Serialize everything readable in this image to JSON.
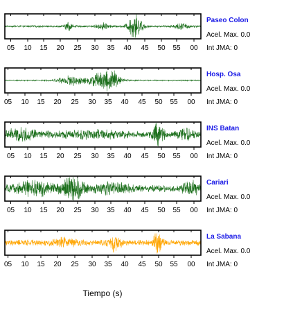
{
  "chart_data": {
    "type": "line",
    "xlabel": "Tiempo (s)",
    "tick_labels": [
      "05",
      "10",
      "15",
      "20",
      "25",
      "30",
      "35",
      "40",
      "45",
      "50",
      "55",
      "00"
    ],
    "station_color": "#1a1ae6",
    "panels": [
      {
        "station": "Paseo Colon",
        "accel_label": "Acel. Max. 0.0",
        "int_label": "Int JMA: 0",
        "color": "#1a6e1a",
        "tick_offset": 0,
        "events": [
          {
            "t": 0.325,
            "amp": 0.35,
            "w": 0.02
          },
          {
            "t": 0.5,
            "amp": 0.28,
            "w": 0.03
          },
          {
            "t": 0.665,
            "amp": 1.0,
            "w": 0.035
          },
          {
            "t": 0.9,
            "amp": 0.25,
            "w": 0.04
          }
        ],
        "noise": 0.08
      },
      {
        "station": "Hosp. Osa",
        "accel_label": "Acel. Max. 0.0",
        "int_label": "Int JMA: 0",
        "color": "#1a6e1a",
        "tick_offset": 1,
        "events": [
          {
            "t": 0.33,
            "amp": 0.45,
            "w": 0.06
          },
          {
            "t": 0.5,
            "amp": 0.7,
            "w": 0.08
          },
          {
            "t": 0.53,
            "amp": 1.0,
            "w": 0.03
          }
        ],
        "noise": 0.05
      },
      {
        "station": "INS Batan",
        "accel_label": "Acel. Max. 0.0",
        "int_label": "Int JMA: 0",
        "color": "#1a6e1a",
        "tick_offset": 0,
        "events": [
          {
            "t": 0.08,
            "amp": 0.45,
            "w": 0.1
          },
          {
            "t": 0.45,
            "amp": 0.3,
            "w": 0.2
          },
          {
            "t": 0.78,
            "amp": 1.0,
            "w": 0.03
          },
          {
            "t": 0.92,
            "amp": 0.4,
            "w": 0.05
          }
        ],
        "noise": 0.18
      },
      {
        "station": "Cariari",
        "accel_label": "Acel. Max. 0.0",
        "int_label": "Int JMA: 0",
        "color": "#1a6e1a",
        "tick_offset": 0,
        "events": [
          {
            "t": 0.35,
            "amp": 1.0,
            "w": 0.05
          },
          {
            "t": 0.15,
            "amp": 0.5,
            "w": 0.1
          },
          {
            "t": 0.55,
            "amp": 0.4,
            "w": 0.08
          },
          {
            "t": 0.95,
            "amp": 0.55,
            "w": 0.04
          }
        ],
        "noise": 0.28
      },
      {
        "station": "La Sabana",
        "accel_label": "Acel. Max. 0.0",
        "int_label": "Int JMA: 0",
        "color": "#ffa500",
        "tick_offset": 1,
        "events": [
          {
            "t": 0.56,
            "amp": 0.6,
            "w": 0.03
          },
          {
            "t": 0.78,
            "amp": 1.0,
            "w": 0.02
          },
          {
            "t": 0.3,
            "amp": 0.3,
            "w": 0.06
          }
        ],
        "noise": 0.25
      }
    ]
  }
}
